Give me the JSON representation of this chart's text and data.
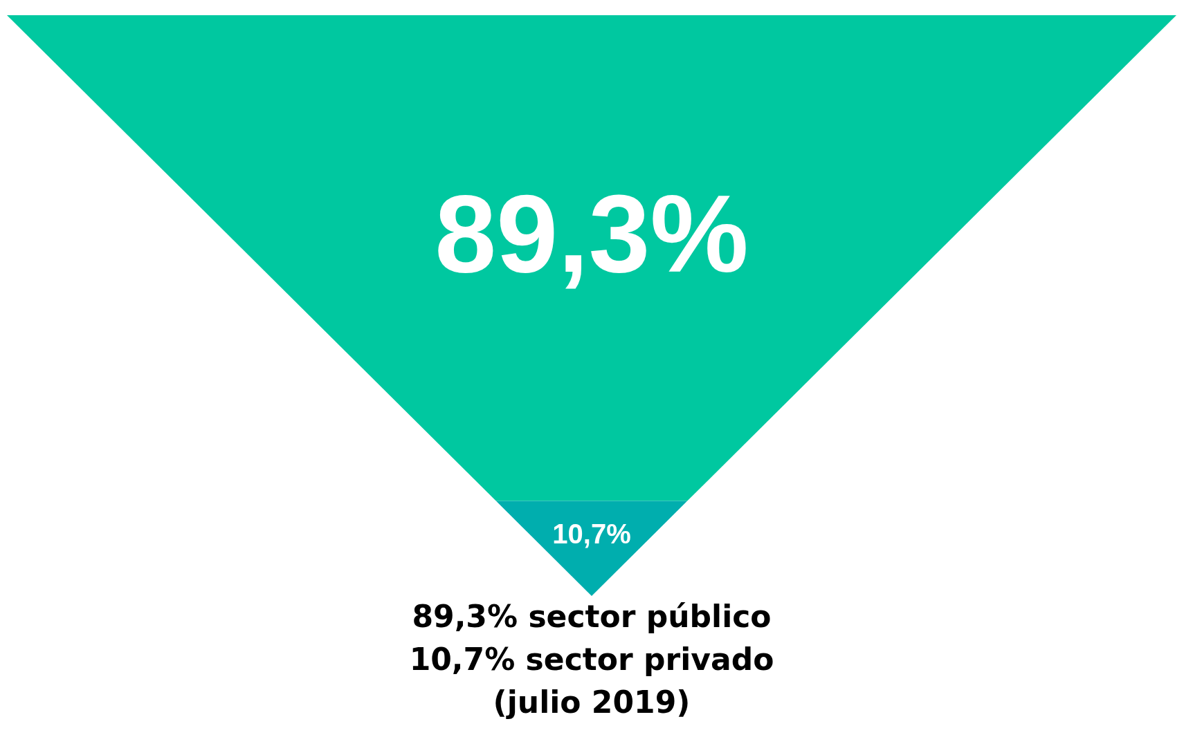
{
  "chart_data": {
    "type": "other",
    "values": [
      89.3,
      10.7
    ],
    "colors": [
      "#00c8a0",
      "#00aeae"
    ],
    "value_labels": [
      "89,3%",
      "10,7%"
    ],
    "annotations": [
      "89,3% sector público",
      "10,7% sector privado",
      "(julio 2019)"
    ]
  }
}
